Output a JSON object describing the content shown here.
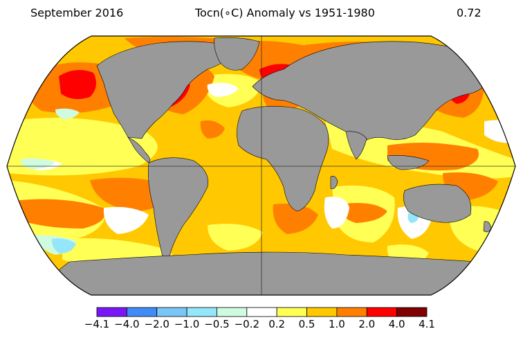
{
  "header": {
    "date": "September 2016",
    "title": "Tocn(∘C) Anomaly vs 1951-1980",
    "global_mean": "0.72"
  },
  "colorbar": {
    "labels": [
      "−4.1",
      "−4.0",
      "−2.0",
      "−1.0",
      "−0.5",
      "−0.2",
      "0.2",
      "0.5",
      "1.0",
      "2.0",
      "4.0",
      "4.1"
    ],
    "colors": [
      "#7a17f5",
      "#3f8cf7",
      "#7ac6f6",
      "#94e6fa",
      "#cffbe0",
      "#ffffff",
      "#ffff55",
      "#ffc800",
      "#ff8000",
      "#ff0000",
      "#7f0000"
    ]
  },
  "map": {
    "projection": "Robinson",
    "ocean_base": "#ffc800",
    "land_color": "#999999"
  }
}
